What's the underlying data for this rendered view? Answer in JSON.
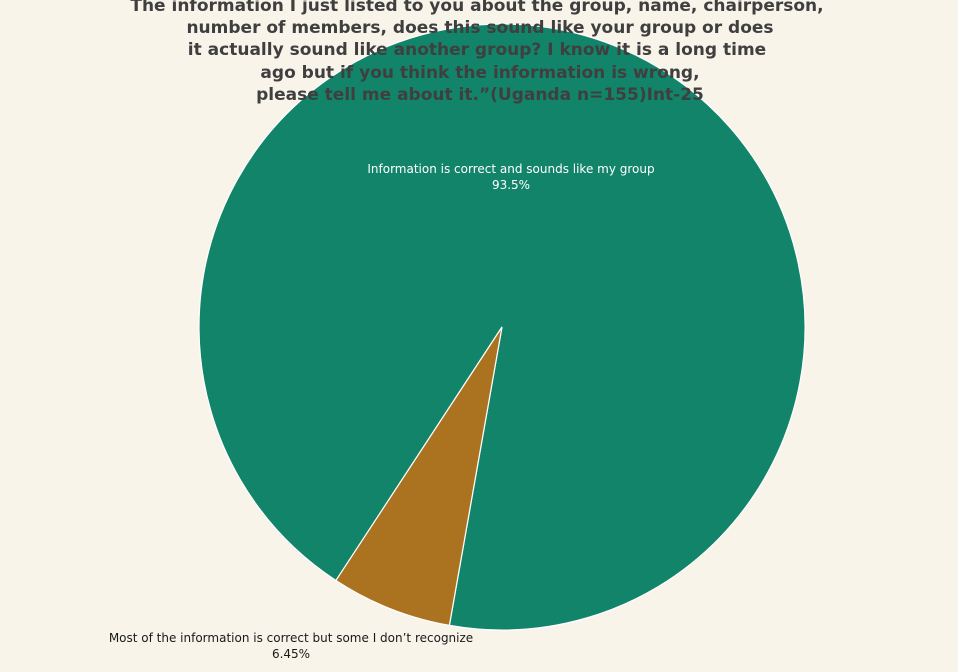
{
  "chart_data": {
    "type": "pie",
    "title_lines": [
      "The information I just listed to you about the group, name, chairperson,",
      "number of members, does this sound like your group or does",
      "it actually sound like another group? I know it is a long time",
      "ago but if you think the information is wrong,",
      "please tell me about it.”(Uganda n=155)Int-25"
    ],
    "slices": [
      {
        "label": "Information is correct and sounds like my group",
        "value": 93.5,
        "value_label": "93.5%",
        "color": "#12846a"
      },
      {
        "label": "Most of the information is correct but some I don’t  recognize",
        "value": 6.45,
        "value_label": "6.45%",
        "color": "#ab7320"
      }
    ],
    "legend": "none"
  },
  "colors": {
    "background": "#f8f4ea",
    "title": "#3f3f3f",
    "inside_label": "#ffffff",
    "outside_label": "#1a1a1a",
    "slice_border": "#ffffff"
  }
}
